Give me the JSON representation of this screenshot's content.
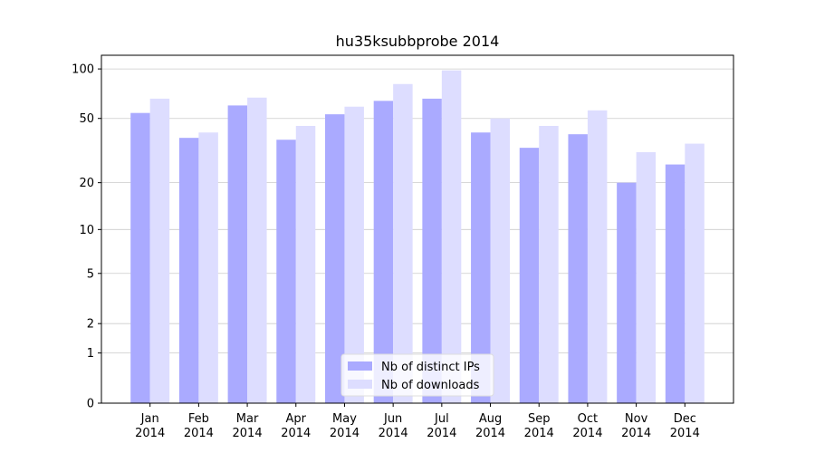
{
  "chart_data": {
    "type": "bar",
    "title": "hu35ksubbprobe 2014",
    "categories": [
      "Jan\n2014",
      "Feb\n2014",
      "Mar\n2014",
      "Apr\n2014",
      "May\n2014",
      "Jun\n2014",
      "Jul\n2014",
      "Aug\n2014",
      "Sep\n2014",
      "Oct\n2014",
      "Nov\n2014",
      "Dec\n2014"
    ],
    "series": [
      {
        "name": "Nb of distinct IPs",
        "color": "#aaaaff",
        "values": [
          54,
          38,
          60,
          37,
          53,
          64,
          66,
          41,
          33,
          40,
          20,
          26
        ]
      },
      {
        "name": "Nb of downloads",
        "color": "#ddddff",
        "values": [
          66,
          41,
          67,
          45,
          59,
          81,
          98,
          50,
          45,
          56,
          31,
          35
        ]
      }
    ],
    "yscale": "log1p",
    "ylim": [
      0,
      121
    ],
    "yticks": [
      0,
      1,
      2,
      5,
      10,
      20,
      50,
      100
    ],
    "grid": true,
    "legend": "lower center"
  }
}
